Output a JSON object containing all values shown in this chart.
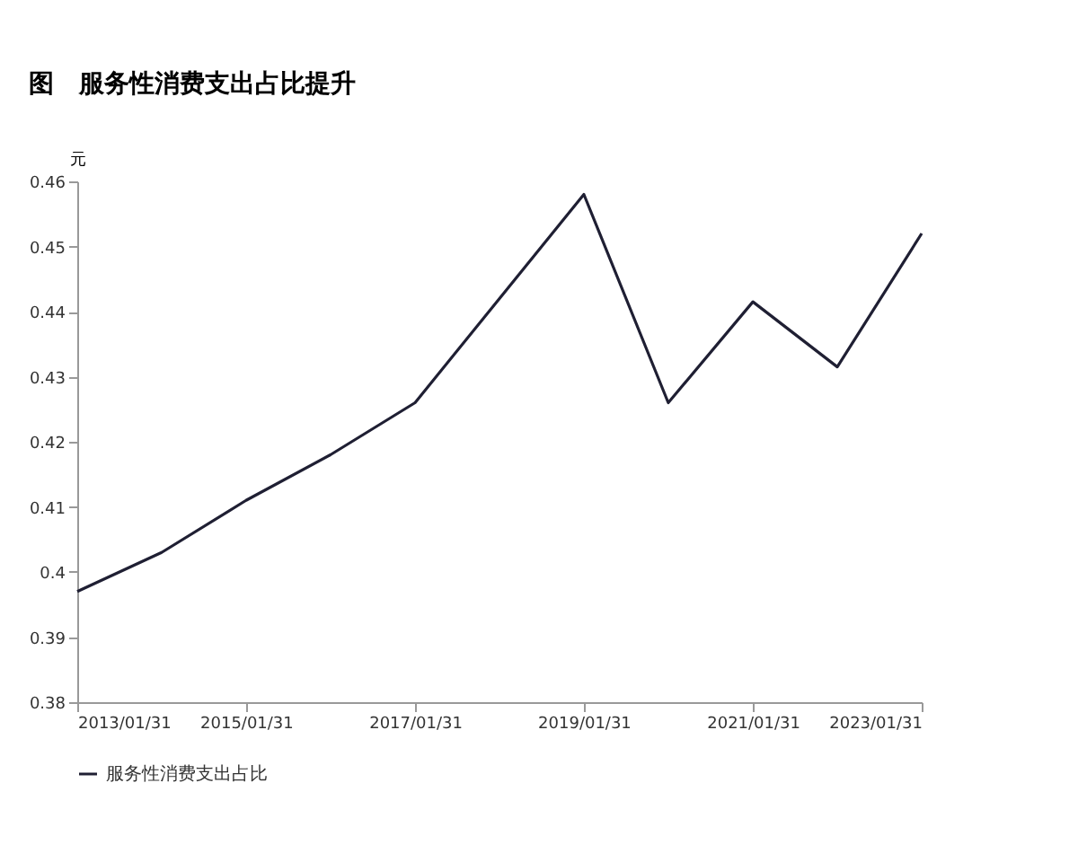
{
  "chart_data": {
    "type": "line",
    "title": "图　服务性消费支出占比提升",
    "ylabel": "元",
    "x": [
      "2013-01-31",
      "2014-01-31",
      "2015-01-31",
      "2016-01-31",
      "2017-01-31",
      "2018-01-31",
      "2019-01-31",
      "2020-01-31",
      "2021-01-31",
      "2022-01-31",
      "2023-01-31"
    ],
    "series": [
      {
        "name": "服务性消费支出占比",
        "color": "#1f1f33",
        "values": [
          0.397,
          0.403,
          0.411,
          0.418,
          0.426,
          0.442,
          0.458,
          0.426,
          0.4415,
          0.4315,
          0.452
        ]
      }
    ],
    "xlim": [
      "2013-01-31",
      "2023-01-31"
    ],
    "xticks": [
      {
        "value": "2013-01-31",
        "label": "2013/01/31"
      },
      {
        "value": "2015-01-31",
        "label": "2015/01/31"
      },
      {
        "value": "2017-01-31",
        "label": "2017/01/31"
      },
      {
        "value": "2019-01-31",
        "label": "2019/01/31"
      },
      {
        "value": "2021-01-31",
        "label": "2021/01/31"
      },
      {
        "value": "2023-01-31",
        "label": "2023/01/31"
      }
    ],
    "ylim": [
      0.38,
      0.46
    ],
    "yticks": [
      0.38,
      0.39,
      0.4,
      0.41,
      0.42,
      0.43,
      0.44,
      0.45,
      0.46
    ],
    "grid": false,
    "legend": "bottom",
    "marker": "none",
    "line_style": "solid"
  }
}
